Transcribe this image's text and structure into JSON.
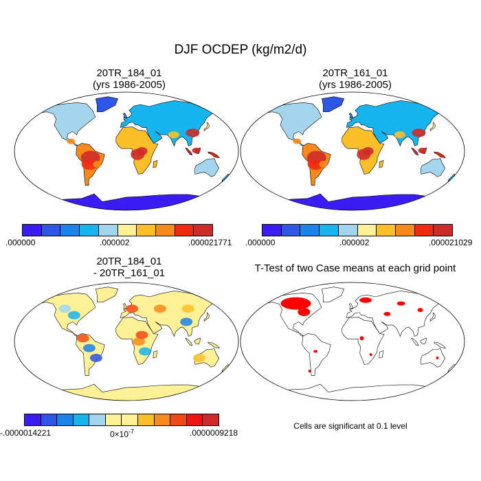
{
  "title": "DJF OCDEP (kg/m2/d)",
  "panels": [
    {
      "line1": "20TR_184_01",
      "line2": "(yrs 1986-2005)"
    },
    {
      "line1": "20TR_161_01",
      "line2": "(yrs 1986-2005)"
    },
    {
      "line1": "20TR_184_01",
      "line2": "- 20TR_161_01"
    },
    {
      "line1": "T-Test of two Case means at each grid point",
      "line2": ""
    }
  ],
  "colorbars": [
    {
      "labels": [
        ".000000",
        ".000002",
        ".000021771"
      ]
    },
    {
      "labels": [
        ".000000",
        ".000002",
        ".000021029"
      ]
    },
    {
      "labels": [
        "-.0000014221",
        "0×10",
        "-7",
        ".0000009218"
      ]
    }
  ],
  "sig_note": "Cells are significant at 0.1 level",
  "colors": {
    "seq": [
      "#3b1cf5",
      "#2d55e6",
      "#1a82e8",
      "#16b5ef",
      "#a3d6ee",
      "#fff296",
      "#fbbf2a",
      "#f78a1c",
      "#f02a12",
      "#cd2a2a"
    ],
    "div": [
      "#3b1cf5",
      "#2d55e6",
      "#1a82e8",
      "#16b5ef",
      "#a3d6ee",
      "#fff296",
      "#fff296",
      "#fbbf2a",
      "#f78a1c",
      "#f04a14",
      "#ee1414",
      "#cd2a2a"
    ],
    "ocean": "#ffffff",
    "sig": "#ff0000"
  },
  "chart_data": [
    {
      "type": "heatmap",
      "title": "20TR_184_01 (yrs 1986-2005)",
      "projection": "Robinson",
      "colorbar_min": 0.0,
      "colorbar_max": 2.1771e-05,
      "levels": 10
    },
    {
      "type": "heatmap",
      "title": "20TR_161_01 (yrs 1986-2005)",
      "projection": "Robinson",
      "colorbar_min": 0.0,
      "colorbar_max": 2.1029e-05,
      "levels": 10
    },
    {
      "type": "heatmap",
      "title": "20TR_184_01 - 20TR_161_01",
      "projection": "Robinson",
      "colorbar_min": -1.4221e-06,
      "colorbar_max": 9.218e-07,
      "levels": 12
    },
    {
      "type": "heatmap",
      "title": "T-Test of two Case means at each grid point",
      "projection": "Robinson",
      "note": "Cells are significant at 0.1 level"
    }
  ]
}
